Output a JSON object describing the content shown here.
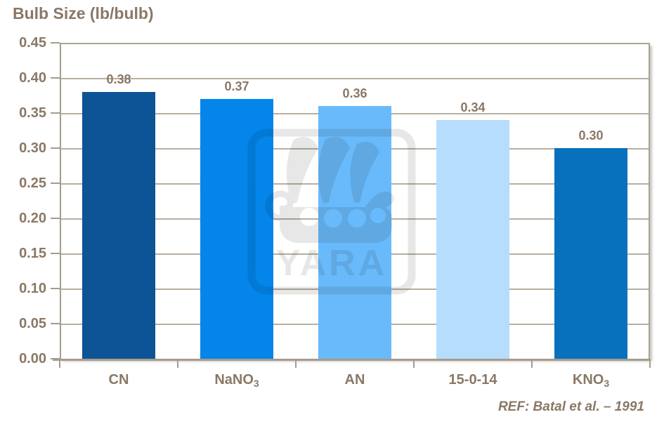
{
  "title": "Bulb Size (lb/bulb)",
  "watermark": {
    "text": "YARA"
  },
  "colors": {
    "text": "#8a7866",
    "grid": "#b8afa2",
    "axis": "#aba294",
    "axis_dark": "#a59c8e",
    "background": "#ffffff"
  },
  "chart_data": {
    "type": "bar",
    "title": "Bulb Size (lb/bulb)",
    "categories": [
      "CN",
      "NaNO₃",
      "AN",
      "15-0-14",
      "KNO₃"
    ],
    "categories_rich": [
      {
        "text": "CN",
        "sub": ""
      },
      {
        "text": "NaNO",
        "sub": "3"
      },
      {
        "text": "AN",
        "sub": ""
      },
      {
        "text": "15-0-14",
        "sub": ""
      },
      {
        "text": "KNO",
        "sub": "3"
      }
    ],
    "values": [
      0.38,
      0.37,
      0.36,
      0.34,
      0.3
    ],
    "value_labels": [
      "0.38",
      "0.37",
      "0.36",
      "0.34",
      "0.30"
    ],
    "bar_colors": [
      "#0d5496",
      "#0385e9",
      "#69bafa",
      "#b6ddfb",
      "#0871bd"
    ],
    "xlabel": "",
    "ylabel": "",
    "ylim": [
      0,
      0.45
    ],
    "ytick_step": 0.05,
    "ytick_labels": [
      "0.00",
      "0.05",
      "0.10",
      "0.15",
      "0.20",
      "0.25",
      "0.30",
      "0.35",
      "0.40",
      "0.45"
    ],
    "grid": true,
    "legend": false,
    "annotation": "REF: Batal et al. – 1991"
  }
}
